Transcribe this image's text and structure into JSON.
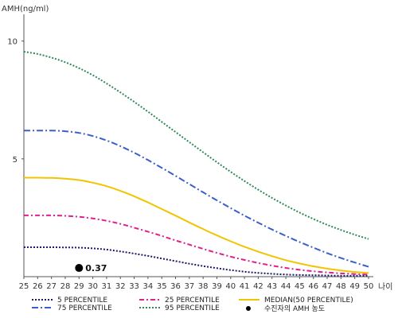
{
  "chart_data": {
    "type": "line",
    "ylabel": "AMH(ng/ml)",
    "xlabel": "나이",
    "xlim": [
      25,
      50
    ],
    "ylim": [
      0,
      11
    ],
    "x_ticks": [
      "25",
      "26",
      "27",
      "28",
      "29",
      "30",
      "31",
      "32",
      "33",
      "34",
      "35",
      "36",
      "37",
      "38",
      "39",
      "40",
      "41",
      "42",
      "43",
      "44",
      "45",
      "46",
      "47",
      "48",
      "49",
      "50"
    ],
    "y_ticks": [
      "5",
      "10"
    ],
    "series": [
      {
        "name": "5 PERCENTILE",
        "color": "#1a1a6e",
        "dash": "2,2",
        "width": 2,
        "x": [
          25,
          26,
          27,
          28,
          29,
          30,
          31,
          32,
          33,
          34,
          35,
          36,
          37,
          38,
          39,
          40,
          41,
          42,
          43,
          44,
          45,
          46,
          47,
          48,
          49,
          50
        ],
        "y": [
          1.25,
          1.25,
          1.25,
          1.24,
          1.23,
          1.2,
          1.15,
          1.07,
          0.98,
          0.88,
          0.77,
          0.66,
          0.55,
          0.45,
          0.36,
          0.28,
          0.21,
          0.16,
          0.12,
          0.09,
          0.07,
          0.06,
          0.05,
          0.04,
          0.04,
          0.04
        ]
      },
      {
        "name": "25 PERCENTILE",
        "color": "#e0208c",
        "dash": "6,3,2,3",
        "width": 2,
        "x": [
          25,
          26,
          27,
          28,
          29,
          30,
          31,
          32,
          33,
          34,
          35,
          36,
          37,
          38,
          39,
          40,
          41,
          42,
          43,
          44,
          45,
          46,
          47,
          48,
          49,
          50
        ],
        "y": [
          2.6,
          2.6,
          2.6,
          2.58,
          2.54,
          2.47,
          2.37,
          2.24,
          2.08,
          1.91,
          1.73,
          1.54,
          1.36,
          1.18,
          1.01,
          0.85,
          0.71,
          0.58,
          0.47,
          0.37,
          0.29,
          0.23,
          0.18,
          0.14,
          0.11,
          0.09
        ]
      },
      {
        "name": "MEDIAN(50 PERCENTILE)",
        "color": "#f2c400",
        "dash": "",
        "width": 2,
        "x": [
          25,
          26,
          27,
          28,
          29,
          30,
          31,
          32,
          33,
          34,
          35,
          36,
          37,
          38,
          39,
          40,
          41,
          42,
          43,
          44,
          45,
          46,
          47,
          48,
          49,
          50
        ],
        "y": [
          4.2,
          4.2,
          4.19,
          4.16,
          4.1,
          3.99,
          3.84,
          3.64,
          3.41,
          3.15,
          2.87,
          2.59,
          2.3,
          2.02,
          1.75,
          1.5,
          1.27,
          1.06,
          0.87,
          0.7,
          0.56,
          0.44,
          0.34,
          0.26,
          0.2,
          0.16
        ]
      },
      {
        "name": "75 PERCENTILE",
        "color": "#3a5fcd",
        "dash": "8,3,2,3",
        "width": 2,
        "x": [
          25,
          26,
          27,
          28,
          29,
          30,
          31,
          32,
          33,
          34,
          35,
          36,
          37,
          38,
          39,
          40,
          41,
          42,
          43,
          44,
          45,
          46,
          47,
          48,
          49,
          50
        ],
        "y": [
          6.2,
          6.2,
          6.2,
          6.17,
          6.1,
          5.97,
          5.78,
          5.54,
          5.26,
          4.95,
          4.62,
          4.28,
          3.93,
          3.58,
          3.24,
          2.91,
          2.59,
          2.29,
          2.0,
          1.73,
          1.47,
          1.23,
          1.0,
          0.79,
          0.6,
          0.42
        ]
      },
      {
        "name": "95 PERCENTILE",
        "color": "#2e8b57",
        "dash": "2,2",
        "width": 2,
        "x": [
          25,
          26,
          27,
          28,
          29,
          30,
          31,
          32,
          33,
          34,
          35,
          36,
          37,
          38,
          39,
          40,
          41,
          42,
          43,
          44,
          45,
          46,
          47,
          48,
          49,
          50
        ],
        "y": [
          9.55,
          9.45,
          9.3,
          9.1,
          8.85,
          8.55,
          8.2,
          7.82,
          7.42,
          7.0,
          6.57,
          6.14,
          5.71,
          5.28,
          4.86,
          4.45,
          4.06,
          3.69,
          3.34,
          3.02,
          2.72,
          2.45,
          2.2,
          1.98,
          1.78,
          1.6
        ]
      }
    ],
    "points": [
      {
        "name": "수진자의 AMH 농도",
        "x": 29,
        "y": 0.37,
        "label": "0.37",
        "color": "#000000"
      }
    ],
    "legend": {
      "placement": "bottom",
      "items": [
        {
          "label": "5 PERCENTILE",
          "color": "#1a1a6e",
          "dash": "2,2",
          "kind": "line"
        },
        {
          "label": "25 PERCENTILE",
          "color": "#e0208c",
          "dash": "6,3,2,3",
          "kind": "line"
        },
        {
          "label": "MEDIAN(50 PERCENTILE)",
          "color": "#f2c400",
          "dash": "",
          "kind": "line"
        },
        {
          "label": "75 PERCENTILE",
          "color": "#3a5fcd",
          "dash": "8,3,2,3",
          "kind": "line"
        },
        {
          "label": "95 PERCENTILE",
          "color": "#2e8b57",
          "dash": "2,2",
          "kind": "line"
        },
        {
          "label": "수진자의 AMH 농도",
          "color": "#000000",
          "dash": "",
          "kind": "dot"
        }
      ]
    }
  }
}
